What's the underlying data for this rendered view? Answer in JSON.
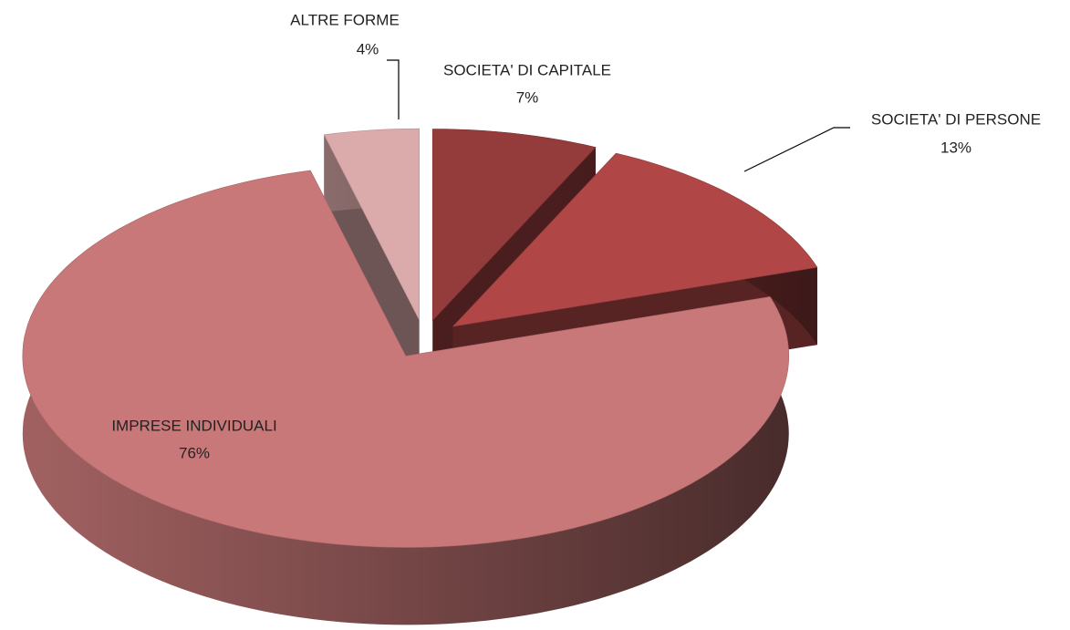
{
  "chart_data": {
    "type": "pie3d",
    "categories": [
      "SOCIETA' DI CAPITALE",
      "SOCIETA' DI PERSONE",
      "IMPRESE INDIVIDUALI",
      "ALTRE FORME"
    ],
    "values": [
      7,
      13,
      76,
      4
    ],
    "value_labels": [
      "7%",
      "13%",
      "76%",
      "4%"
    ],
    "colors": [
      "#943b3b",
      "#b04646",
      "#c87878",
      "#dbaaaa"
    ]
  }
}
